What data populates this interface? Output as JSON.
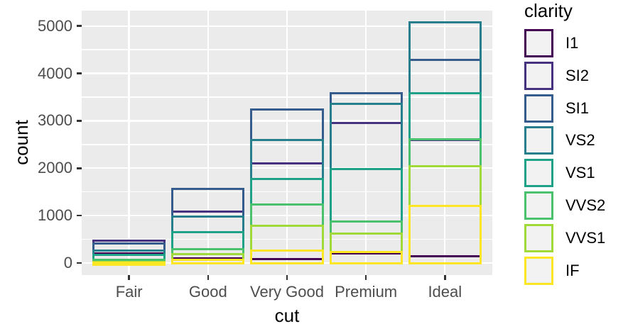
{
  "chart_data": {
    "type": "bar",
    "variant": "overlaid-outline-bars",
    "title": "",
    "xlabel": "cut",
    "ylabel": "count",
    "categories": [
      "Fair",
      "Good",
      "Very Good",
      "Premium",
      "Ideal"
    ],
    "series": [
      {
        "name": "I1",
        "color": "#440154",
        "values": [
          210,
          96,
          84,
          205,
          146
        ]
      },
      {
        "name": "SI2",
        "color": "#46327E",
        "values": [
          466,
          1081,
          2100,
          2949,
          2598
        ]
      },
      {
        "name": "SI1",
        "color": "#365C8D",
        "values": [
          408,
          1560,
          3240,
          3575,
          4282
        ]
      },
      {
        "name": "VS2",
        "color": "#277F8E",
        "values": [
          261,
          978,
          2591,
          3357,
          5071
        ]
      },
      {
        "name": "VS1",
        "color": "#1FA187",
        "values": [
          170,
          648,
          1775,
          1989,
          3589
        ]
      },
      {
        "name": "VVS2",
        "color": "#4AC16D",
        "values": [
          69,
          286,
          1235,
          870,
          2606
        ]
      },
      {
        "name": "VVS1",
        "color": "#9FDA3A",
        "values": [
          17,
          186,
          789,
          616,
          2047
        ]
      },
      {
        "name": "IF",
        "color": "#FDE725",
        "values": [
          9,
          71,
          268,
          230,
          1212
        ]
      }
    ],
    "legend": {
      "title": "clarity",
      "position": "right"
    },
    "y_ticks": [
      0,
      1000,
      2000,
      3000,
      4000,
      5000
    ],
    "y_minor_ticks": [
      500,
      1500,
      2500,
      3500,
      4500
    ],
    "ylim": [
      -253.55,
      5324.55
    ],
    "grid": "major-and-minor-horizontal, major-vertical",
    "colors": {
      "panel_background": "#EBEBEB",
      "gridline": "#FFFFFF",
      "axis_tick": "#333333",
      "axis_text": "#4D4D4D",
      "axis_title": "#000000",
      "legend_key_background": "#F2F2F2"
    }
  }
}
